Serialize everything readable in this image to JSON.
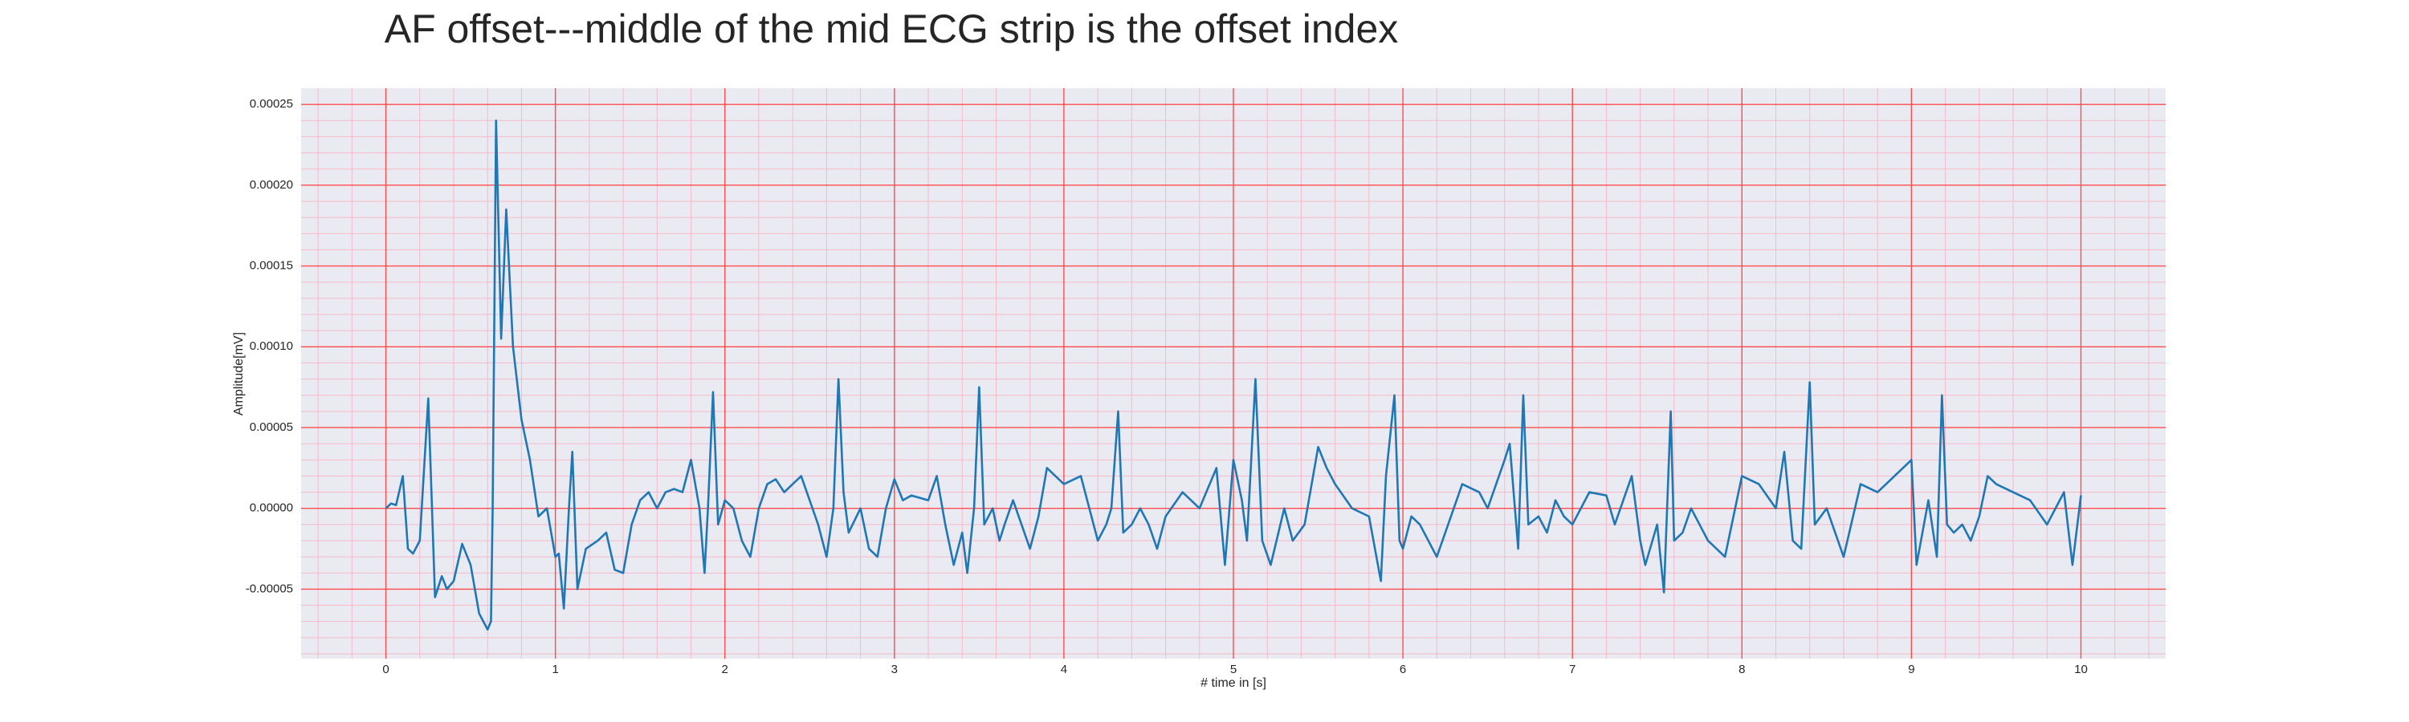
{
  "chart_data": {
    "type": "line",
    "title": "AF offset---middle of the mid ECG strip is the offset index",
    "x_label": "# time in [s]",
    "y_label": "Amplitude[mV]",
    "color": "#1f77b4",
    "background": "#eaeaf2",
    "grid": true,
    "grid_color": "#ff4d4d",
    "minor_grid": true,
    "minor_grid_color": "#f7b9c8",
    "xminor_step": 0.2,
    "yminor_step": 1e-05,
    "xlim": [
      -0.5,
      10.5
    ],
    "ylim": [
      -9.3e-05,
      0.00026
    ],
    "xticks": [
      0,
      1,
      2,
      3,
      4,
      5,
      6,
      7,
      8,
      9,
      10
    ],
    "yticks": [
      {
        "value": -5e-05,
        "label": "-0.00005"
      },
      {
        "value": 0,
        "label": "0.00000"
      },
      {
        "value": 5e-05,
        "label": "0.00005"
      },
      {
        "value": 0.0001,
        "label": "0.00010"
      },
      {
        "value": 0.00015,
        "label": "0.00015"
      },
      {
        "value": 0.0002,
        "label": "0.00020"
      },
      {
        "value": 0.00025,
        "label": "0.00025"
      }
    ],
    "x": [
      0,
      0.03,
      0.06,
      0.1,
      0.13,
      0.16,
      0.2,
      0.25,
      0.29,
      0.33,
      0.36,
      0.4,
      0.45,
      0.5,
      0.55,
      0.6,
      0.62,
      0.63,
      0.65,
      0.68,
      0.71,
      0.75,
      0.8,
      0.85,
      0.9,
      0.95,
      1.0,
      1.02,
      1.05,
      1.08,
      1.1,
      1.13,
      1.18,
      1.25,
      1.3,
      1.35,
      1.4,
      1.45,
      1.5,
      1.55,
      1.6,
      1.65,
      1.7,
      1.75,
      1.8,
      1.85,
      1.88,
      1.9,
      1.93,
      1.96,
      2.0,
      2.05,
      2.1,
      2.15,
      2.2,
      2.25,
      2.3,
      2.35,
      2.4,
      2.45,
      2.5,
      2.55,
      2.6,
      2.64,
      2.67,
      2.7,
      2.73,
      2.8,
      2.85,
      2.9,
      2.95,
      3.0,
      3.05,
      3.1,
      3.2,
      3.25,
      3.3,
      3.35,
      3.4,
      3.43,
      3.47,
      3.5,
      3.53,
      3.58,
      3.62,
      3.65,
      3.7,
      3.75,
      3.8,
      3.85,
      3.9,
      3.95,
      4.0,
      4.1,
      4.15,
      4.2,
      4.25,
      4.28,
      4.32,
      4.35,
      4.4,
      4.45,
      4.5,
      4.55,
      4.6,
      4.7,
      4.75,
      4.8,
      4.9,
      4.95,
      5.0,
      5.05,
      5.08,
      5.13,
      5.17,
      5.22,
      5.3,
      5.35,
      5.42,
      5.5,
      5.55,
      5.6,
      5.7,
      5.8,
      5.87,
      5.9,
      5.95,
      5.98,
      6.0,
      6.05,
      6.1,
      6.2,
      6.3,
      6.35,
      6.45,
      6.5,
      6.55,
      6.6,
      6.63,
      6.68,
      6.71,
      6.74,
      6.8,
      6.85,
      6.9,
      6.95,
      7.0,
      7.1,
      7.2,
      7.25,
      7.3,
      7.35,
      7.4,
      7.43,
      7.5,
      7.54,
      7.58,
      7.6,
      7.65,
      7.7,
      7.75,
      7.8,
      7.9,
      8.0,
      8.1,
      8.2,
      8.25,
      8.3,
      8.35,
      8.4,
      8.43,
      8.5,
      8.55,
      8.6,
      8.7,
      8.8,
      8.9,
      9.0,
      9.03,
      9.1,
      9.15,
      9.18,
      9.21,
      9.25,
      9.3,
      9.35,
      9.4,
      9.45,
      9.5,
      9.6,
      9.7,
      9.8,
      9.9,
      9.95,
      10.0
    ],
    "values": [
      0,
      3e-06,
      2e-06,
      2e-05,
      -2.5e-05,
      -2.8e-05,
      -2e-05,
      6.8e-05,
      -5.5e-05,
      -4.2e-05,
      -5e-05,
      -4.5e-05,
      -2.2e-05,
      -3.5e-05,
      -6.5e-05,
      -7.5e-05,
      -7e-05,
      0,
      0.00024,
      0.000105,
      0.000185,
      0.0001,
      5.5e-05,
      3e-05,
      -5e-06,
      0,
      -3e-05,
      -2.8e-05,
      -6.2e-05,
      0,
      3.5e-05,
      -5e-05,
      -2.5e-05,
      -2e-05,
      -1.5e-05,
      -3.8e-05,
      -4e-05,
      -1e-05,
      5e-06,
      1e-05,
      0,
      1e-05,
      1.2e-05,
      1e-05,
      3e-05,
      0,
      -4e-05,
      0,
      7.2e-05,
      -1e-05,
      5e-06,
      0,
      -2e-05,
      -3e-05,
      0,
      1.5e-05,
      1.8e-05,
      1e-05,
      1.5e-05,
      2e-05,
      5e-06,
      -1e-05,
      -3e-05,
      0,
      8e-05,
      1e-05,
      -1.5e-05,
      0,
      -2.5e-05,
      -3e-05,
      0,
      1.8e-05,
      5e-06,
      8e-06,
      5e-06,
      2e-05,
      -1e-05,
      -3.5e-05,
      -1.5e-05,
      -4e-05,
      0,
      7.5e-05,
      -1e-05,
      0,
      -2e-05,
      -1e-05,
      5e-06,
      -1e-05,
      -2.5e-05,
      -5e-06,
      2.5e-05,
      2e-05,
      1.5e-05,
      2e-05,
      0,
      -2e-05,
      -1e-05,
      0,
      6e-05,
      -1.5e-05,
      -1e-05,
      0,
      -1e-05,
      -2.5e-05,
      -5e-06,
      1e-05,
      5e-06,
      0,
      2.5e-05,
      -3.5e-05,
      3e-05,
      5e-06,
      -2e-05,
      8e-05,
      -2e-05,
      -3.5e-05,
      0,
      -2e-05,
      -1e-05,
      3.8e-05,
      2.5e-05,
      1.5e-05,
      0,
      -5e-06,
      -4.5e-05,
      2e-05,
      7e-05,
      -2e-05,
      -2.5e-05,
      -5e-06,
      -1e-05,
      -3e-05,
      0,
      1.5e-05,
      1e-05,
      0,
      1.5e-05,
      3e-05,
      4e-05,
      -2.5e-05,
      7e-05,
      -1e-05,
      -5e-06,
      -1.5e-05,
      5e-06,
      -5e-06,
      -1e-05,
      1e-05,
      8e-06,
      -1e-05,
      5e-06,
      2e-05,
      -2e-05,
      -3.5e-05,
      -1e-05,
      -5.2e-05,
      6e-05,
      -2e-05,
      -1.5e-05,
      0,
      -1e-05,
      -2e-05,
      -3e-05,
      2e-05,
      1.5e-05,
      0,
      3.5e-05,
      -2e-05,
      -2.5e-05,
      7.8e-05,
      -1e-05,
      0,
      -1.5e-05,
      -3e-05,
      1.5e-05,
      1e-05,
      2e-05,
      3e-05,
      -3.5e-05,
      5e-06,
      -3e-05,
      7e-05,
      -1e-05,
      -1.5e-05,
      -1e-05,
      -2e-05,
      -5e-06,
      2e-05,
      1.5e-05,
      1e-05,
      5e-06,
      -1e-05,
      1e-05,
      -3.5e-05,
      8e-06
    ]
  }
}
